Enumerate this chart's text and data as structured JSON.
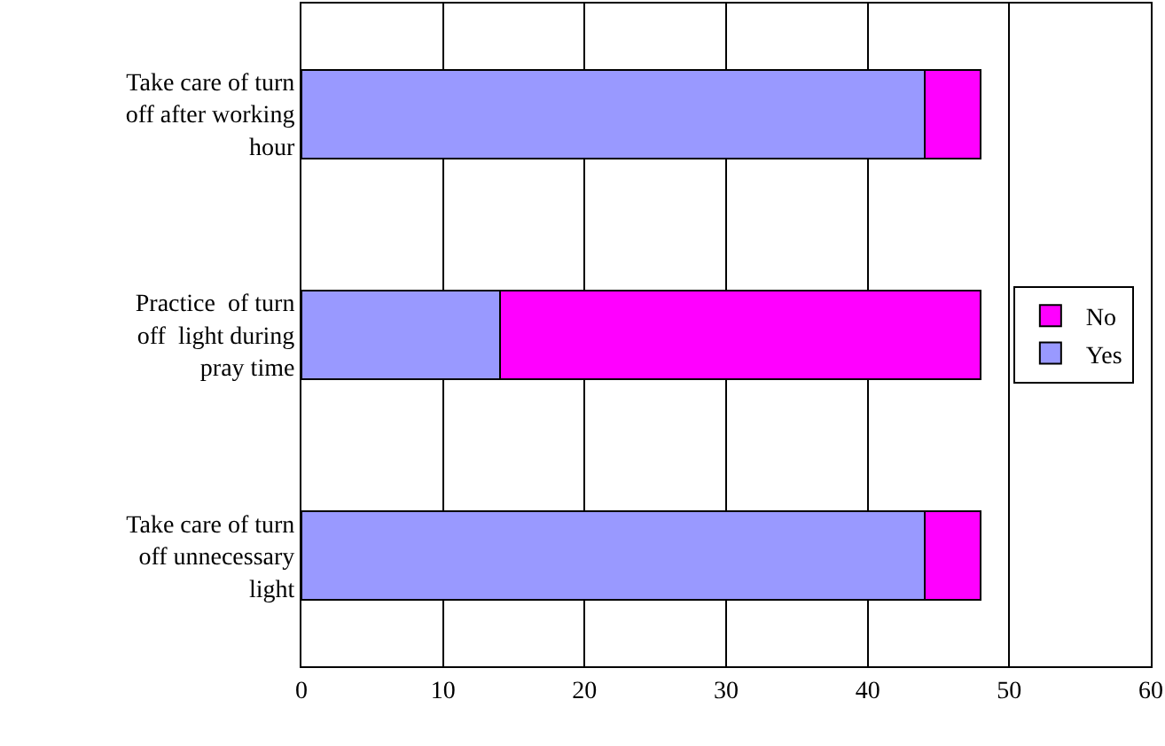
{
  "chart_data": {
    "type": "bar",
    "orientation": "horizontal",
    "stacked": true,
    "categories": [
      "Take care of turn off after working hour",
      "Practice  of turn off  light during pray time",
      "Take care of turn off unnecessary light"
    ],
    "series": [
      {
        "name": "Yes",
        "color": "#9999ff",
        "values": [
          44,
          14,
          44
        ]
      },
      {
        "name": "No",
        "color": "#ff00ff",
        "values": [
          4,
          34,
          4
        ]
      }
    ],
    "xlim": [
      0,
      60
    ],
    "xticks": [
      0,
      10,
      20,
      30,
      40,
      50,
      60
    ],
    "grid": "x",
    "legend": "right"
  }
}
